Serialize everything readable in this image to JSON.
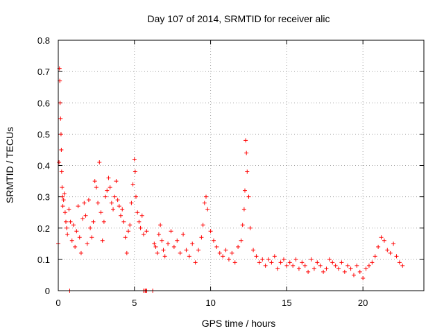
{
  "chart_data": {
    "type": "scatter",
    "title": "Day 107 of 2014, SRMTID for receiver alic",
    "xlabel": "GPS time / hours",
    "ylabel": "SRMTID / TECUs",
    "xlim": [
      0,
      24
    ],
    "ylim": [
      0,
      0.8
    ],
    "x_ticks": [
      0,
      5,
      10,
      15,
      20
    ],
    "x_tick_labels": [
      "0",
      "5",
      "10",
      "15",
      "20"
    ],
    "y_ticks": [
      0,
      0.1,
      0.2,
      0.3,
      0.4,
      0.5,
      0.6,
      0.7,
      0.8
    ],
    "y_tick_labels": [
      "0",
      "0.1",
      "0.2",
      "0.3",
      "0.4",
      "0.5",
      "0.6",
      "0.7",
      "0.8"
    ],
    "grid": true,
    "marker": "plus",
    "color": "#ff0000",
    "series": [
      {
        "name": "SRMTID",
        "x": [
          0.0,
          0.05,
          0.08,
          0.1,
          0.12,
          0.15,
          0.18,
          0.2,
          0.22,
          0.25,
          0.28,
          0.3,
          0.35,
          0.4,
          0.45,
          0.5,
          0.55,
          0.6,
          0.7,
          0.8,
          0.9,
          1.0,
          1.1,
          1.2,
          1.3,
          1.4,
          1.5,
          1.6,
          1.7,
          1.8,
          1.9,
          2.0,
          2.1,
          2.2,
          2.3,
          2.4,
          2.5,
          2.6,
          2.7,
          2.8,
          2.9,
          3.0,
          3.1,
          3.2,
          3.3,
          3.4,
          3.5,
          3.6,
          3.7,
          3.8,
          3.9,
          4.0,
          4.1,
          4.2,
          4.3,
          4.4,
          4.5,
          4.6,
          4.7,
          4.8,
          4.9,
          5.0,
          5.05,
          5.1,
          5.2,
          5.3,
          5.4,
          5.5,
          5.6,
          5.8,
          6.3,
          6.4,
          6.5,
          6.6,
          6.7,
          6.8,
          6.9,
          7.0,
          7.2,
          7.4,
          7.6,
          7.8,
          8.0,
          8.2,
          8.4,
          8.6,
          8.8,
          9.0,
          9.2,
          9.4,
          9.5,
          9.6,
          9.7,
          9.8,
          10.0,
          10.2,
          10.4,
          10.6,
          10.8,
          11.0,
          11.2,
          11.4,
          11.6,
          11.8,
          12.0,
          12.1,
          12.2,
          12.25,
          12.3,
          12.35,
          12.4,
          12.5,
          12.6,
          12.8,
          13.0,
          13.2,
          13.4,
          13.6,
          13.8,
          14.0,
          14.2,
          14.4,
          14.6,
          14.8,
          15.0,
          15.2,
          15.4,
          15.6,
          15.8,
          16.0,
          16.2,
          16.4,
          16.6,
          16.8,
          17.0,
          17.2,
          17.4,
          17.6,
          17.8,
          18.0,
          18.2,
          18.4,
          18.6,
          18.8,
          19.0,
          19.2,
          19.4,
          19.6,
          19.8,
          20.0,
          20.2,
          20.4,
          20.6,
          20.8,
          21.0,
          21.2,
          21.4,
          21.6,
          21.8,
          22.0,
          22.2,
          22.4,
          22.6,
          0.75,
          5.6,
          5.7,
          5.75,
          5.8,
          6.2
        ],
        "y": [
          0.15,
          0.41,
          0.71,
          0.67,
          0.6,
          0.55,
          0.5,
          0.45,
          0.38,
          0.33,
          0.3,
          0.27,
          0.29,
          0.31,
          0.25,
          0.22,
          0.2,
          0.18,
          0.26,
          0.22,
          0.16,
          0.21,
          0.14,
          0.19,
          0.27,
          0.17,
          0.12,
          0.23,
          0.28,
          0.24,
          0.15,
          0.29,
          0.2,
          0.17,
          0.22,
          0.35,
          0.33,
          0.28,
          0.41,
          0.25,
          0.16,
          0.22,
          0.3,
          0.32,
          0.36,
          0.33,
          0.28,
          0.26,
          0.3,
          0.35,
          0.29,
          0.27,
          0.24,
          0.26,
          0.22,
          0.17,
          0.12,
          0.19,
          0.21,
          0.28,
          0.34,
          0.42,
          0.38,
          0.3,
          0.25,
          0.22,
          0.2,
          0.24,
          0.18,
          0.19,
          0.15,
          0.14,
          0.12,
          0.18,
          0.21,
          0.16,
          0.13,
          0.11,
          0.15,
          0.19,
          0.14,
          0.16,
          0.12,
          0.18,
          0.13,
          0.11,
          0.15,
          0.09,
          0.13,
          0.17,
          0.21,
          0.28,
          0.3,
          0.26,
          0.19,
          0.16,
          0.14,
          0.12,
          0.11,
          0.13,
          0.1,
          0.12,
          0.09,
          0.14,
          0.16,
          0.21,
          0.26,
          0.32,
          0.48,
          0.44,
          0.38,
          0.3,
          0.2,
          0.13,
          0.11,
          0.09,
          0.1,
          0.08,
          0.1,
          0.09,
          0.11,
          0.07,
          0.09,
          0.1,
          0.08,
          0.09,
          0.08,
          0.1,
          0.07,
          0.09,
          0.08,
          0.06,
          0.1,
          0.07,
          0.09,
          0.08,
          0.06,
          0.07,
          0.1,
          0.09,
          0.08,
          0.07,
          0.09,
          0.06,
          0.08,
          0.07,
          0.05,
          0.08,
          0.06,
          0.04,
          0.07,
          0.08,
          0.09,
          0.11,
          0.14,
          0.17,
          0.16,
          0.13,
          0.12,
          0.15,
          0.11,
          0.09,
          0.08,
          0.0,
          0.0,
          0.0,
          0.0,
          0.0,
          0.0
        ]
      }
    ]
  }
}
